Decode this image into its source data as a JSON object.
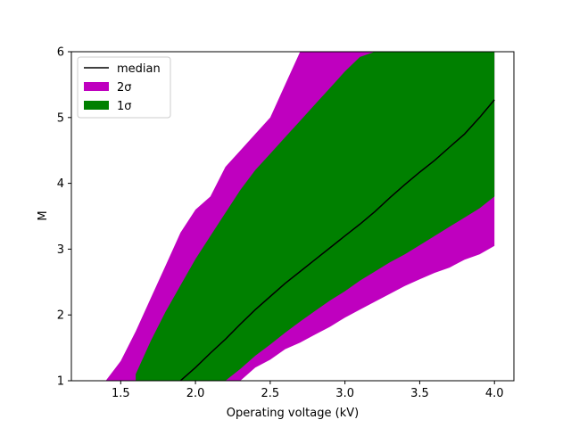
{
  "chart_data": {
    "type": "area",
    "xlabel": "Operating voltage (kV)",
    "ylabel": "M",
    "xlim": [
      1.17,
      4.13
    ],
    "ylim": [
      1,
      6
    ],
    "xticks": [
      "1.5",
      "2.0",
      "2.5",
      "3.0",
      "3.5",
      "4.0"
    ],
    "yticks": [
      "1",
      "2",
      "3",
      "4",
      "5",
      "6"
    ],
    "grid": false,
    "legend_position": "top-left",
    "legend": [
      "median",
      "2σ",
      "1σ"
    ],
    "colors": {
      "median": "#000000",
      "two_sigma": "#bf00bf",
      "one_sigma": "#008000"
    },
    "x": [
      1.4,
      1.5,
      1.6,
      1.7,
      1.8,
      1.9,
      2.0,
      2.1,
      2.2,
      2.3,
      2.4,
      2.5,
      2.6,
      2.7,
      2.8,
      2.9,
      3.0,
      3.1,
      3.2,
      3.3,
      3.4,
      3.5,
      3.6,
      3.7,
      3.8,
      3.9,
      4.0
    ],
    "series": [
      {
        "name": "median",
        "style": "line",
        "values": [
          null,
          null,
          null,
          null,
          null,
          1.0,
          1.2,
          1.42,
          1.63,
          1.86,
          2.08,
          2.28,
          2.48,
          2.66,
          2.84,
          3.02,
          3.2,
          3.38,
          3.57,
          3.78,
          3.98,
          4.17,
          4.35,
          4.55,
          4.75,
          5.0,
          5.27
        ]
      },
      {
        "name": "2σ",
        "style": "band",
        "lower": [
          null,
          null,
          null,
          null,
          null,
          null,
          null,
          null,
          null,
          1.0,
          1.2,
          1.32,
          1.48,
          1.58,
          1.7,
          1.82,
          1.96,
          2.08,
          2.2,
          2.32,
          2.44,
          2.54,
          2.64,
          2.72,
          2.84,
          2.92,
          3.05
        ],
        "upper": [
          1.0,
          1.3,
          1.75,
          2.25,
          2.75,
          3.25,
          3.6,
          3.8,
          4.25,
          4.5,
          4.75,
          5.0,
          5.5,
          6.0,
          6.0,
          6.0,
          6.0,
          6.0,
          6.0,
          6.0,
          6.0,
          6.0,
          6.0,
          6.0,
          6.0,
          6.0,
          6.0
        ]
      },
      {
        "name": "1σ",
        "style": "band",
        "lower": [
          null,
          null,
          null,
          null,
          null,
          null,
          null,
          null,
          1.0,
          1.18,
          1.38,
          1.55,
          1.73,
          1.9,
          2.06,
          2.22,
          2.36,
          2.52,
          2.66,
          2.8,
          2.92,
          3.06,
          3.2,
          3.34,
          3.48,
          3.62,
          3.8
        ],
        "upper": [
          null,
          null,
          1.1,
          1.6,
          2.05,
          2.45,
          2.85,
          3.2,
          3.55,
          3.9,
          4.2,
          4.45,
          4.7,
          4.95,
          5.2,
          5.45,
          5.7,
          5.92,
          6.0,
          6.0,
          6.0,
          6.0,
          6.0,
          6.0,
          6.0,
          6.0,
          6.0
        ]
      }
    ]
  }
}
